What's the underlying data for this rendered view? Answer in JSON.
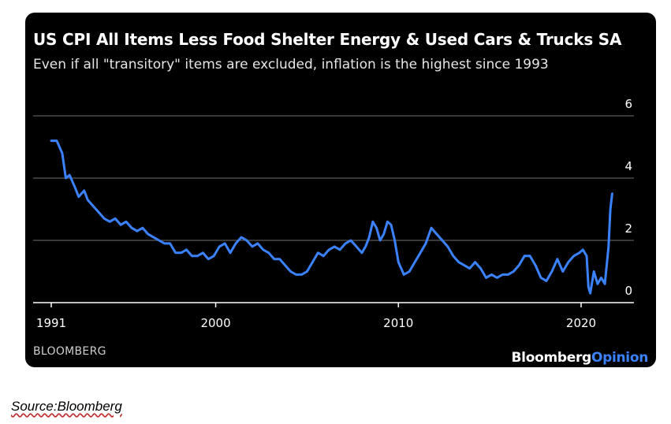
{
  "chart_data": {
    "type": "line",
    "title": "US CPI All Items Less Food Shelter Energy & Used Cars & Trucks SA",
    "subtitle": "Even if all \"transitory\" items are excluded, inflation is the highest since 1993",
    "xlabel": "",
    "ylabel": "",
    "xlim": [
      1991,
      2022
    ],
    "ylim": [
      0,
      6
    ],
    "x_ticks": [
      1991,
      2000,
      2010,
      2020
    ],
    "y_ticks": [
      0,
      2,
      4,
      6
    ],
    "grid": true,
    "colors": {
      "background": "#000000",
      "line": "#3b82ff",
      "grid": "#5a5a5a",
      "text": "#ffffff"
    },
    "series": [
      {
        "name": "US CPI All Items Less Food Shelter Energy & Used Cars & Trucks SA",
        "x": [
          1991.0,
          1991.3,
          1991.6,
          1991.8,
          1992.0,
          1992.3,
          1992.5,
          1992.8,
          1993.0,
          1993.3,
          1993.6,
          1993.9,
          1994.2,
          1994.5,
          1994.8,
          1995.1,
          1995.4,
          1995.7,
          1996.0,
          1996.3,
          1996.6,
          1996.9,
          1997.2,
          1997.5,
          1997.8,
          1998.1,
          1998.4,
          1998.7,
          1999.0,
          1999.3,
          1999.6,
          1999.9,
          2000.2,
          2000.5,
          2000.8,
          2001.1,
          2001.4,
          2001.7,
          2002.0,
          2002.3,
          2002.6,
          2002.9,
          2003.2,
          2003.5,
          2003.8,
          2004.1,
          2004.4,
          2004.7,
          2005.0,
          2005.3,
          2005.6,
          2005.9,
          2006.2,
          2006.5,
          2006.8,
          2007.1,
          2007.4,
          2007.7,
          2008.0,
          2008.2,
          2008.4,
          2008.6,
          2008.8,
          2009.0,
          2009.2,
          2009.4,
          2009.6,
          2009.8,
          2010.0,
          2010.3,
          2010.6,
          2010.9,
          2011.2,
          2011.5,
          2011.8,
          2012.1,
          2012.4,
          2012.7,
          2013.0,
          2013.3,
          2013.6,
          2013.9,
          2014.2,
          2014.5,
          2014.8,
          2015.1,
          2015.4,
          2015.7,
          2016.0,
          2016.3,
          2016.6,
          2016.9,
          2017.2,
          2017.5,
          2017.8,
          2018.1,
          2018.4,
          2018.7,
          2019.0,
          2019.3,
          2019.6,
          2019.9,
          2020.1,
          2020.3,
          2020.4,
          2020.5,
          2020.7,
          2020.9,
          2021.1,
          2021.3,
          2021.5,
          2021.6,
          2021.7
        ],
        "values": [
          5.2,
          5.2,
          4.8,
          4.0,
          4.1,
          3.7,
          3.4,
          3.6,
          3.3,
          3.1,
          2.9,
          2.7,
          2.6,
          2.7,
          2.5,
          2.6,
          2.4,
          2.3,
          2.4,
          2.2,
          2.1,
          2.0,
          1.9,
          1.9,
          1.6,
          1.6,
          1.7,
          1.5,
          1.5,
          1.6,
          1.4,
          1.5,
          1.8,
          1.9,
          1.6,
          1.9,
          2.1,
          2.0,
          1.8,
          1.9,
          1.7,
          1.6,
          1.4,
          1.4,
          1.2,
          1.0,
          0.9,
          0.9,
          1.0,
          1.3,
          1.6,
          1.5,
          1.7,
          1.8,
          1.7,
          1.9,
          2.0,
          1.8,
          1.6,
          1.8,
          2.1,
          2.6,
          2.4,
          2.0,
          2.2,
          2.6,
          2.5,
          2.0,
          1.3,
          0.9,
          1.0,
          1.3,
          1.6,
          1.9,
          2.4,
          2.2,
          2.0,
          1.8,
          1.5,
          1.3,
          1.2,
          1.1,
          1.3,
          1.1,
          0.8,
          0.9,
          0.8,
          0.9,
          0.9,
          1.0,
          1.2,
          1.5,
          1.5,
          1.2,
          0.8,
          0.7,
          1.0,
          1.4,
          1.0,
          1.3,
          1.5,
          1.6,
          1.7,
          1.5,
          0.5,
          0.3,
          1.0,
          0.6,
          0.8,
          0.6,
          1.8,
          3.0,
          3.5
        ]
      }
    ]
  },
  "footer": {
    "source_label": "BLOOMBERG",
    "brand_primary": "Bloomberg",
    "brand_secondary": "Opinion"
  },
  "caption": {
    "source": "Source:Bloomberg"
  }
}
